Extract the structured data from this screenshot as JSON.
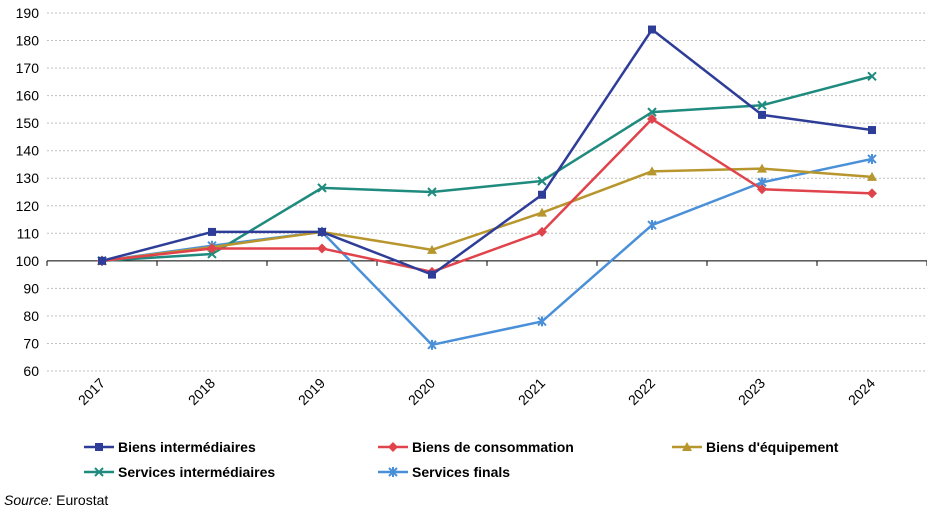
{
  "chart_data": {
    "type": "line",
    "categories": [
      "2017",
      "2018",
      "2019",
      "2020",
      "2021",
      "2022",
      "2023",
      "2024"
    ],
    "ylim": [
      60,
      190
    ],
    "yticks": [
      60,
      70,
      80,
      90,
      100,
      110,
      120,
      130,
      140,
      150,
      160,
      170,
      180,
      190
    ],
    "grid": true,
    "legend_position": "bottom",
    "series": [
      {
        "name": "Biens intermédiaires",
        "color": "#2E3D98",
        "marker": "square",
        "values": [
          100,
          110.5,
          110.5,
          95,
          124,
          184,
          153,
          147.5
        ]
      },
      {
        "name": "Biens de consommation",
        "color": "#E0434B",
        "marker": "diamond",
        "values": [
          100,
          104.5,
          104.5,
          96,
          110.5,
          151.5,
          126,
          124.5
        ]
      },
      {
        "name": "Biens d'équipement",
        "color": "#B8962E",
        "marker": "triangle",
        "values": [
          100,
          105,
          110.5,
          104,
          117.5,
          132.5,
          133.5,
          130.5
        ]
      },
      {
        "name": "Services intermédiaires",
        "color": "#1F8A7E",
        "marker": "x",
        "values": [
          100,
          102.5,
          126.5,
          125,
          129,
          154,
          156.5,
          167
        ]
      },
      {
        "name": "Services finals",
        "color": "#4A90D9",
        "marker": "star",
        "values": [
          100,
          105.5,
          110.5,
          69.5,
          78,
          113,
          128.5,
          137
        ]
      }
    ]
  },
  "source": {
    "label": "Source:",
    "text": " Eurostat"
  }
}
